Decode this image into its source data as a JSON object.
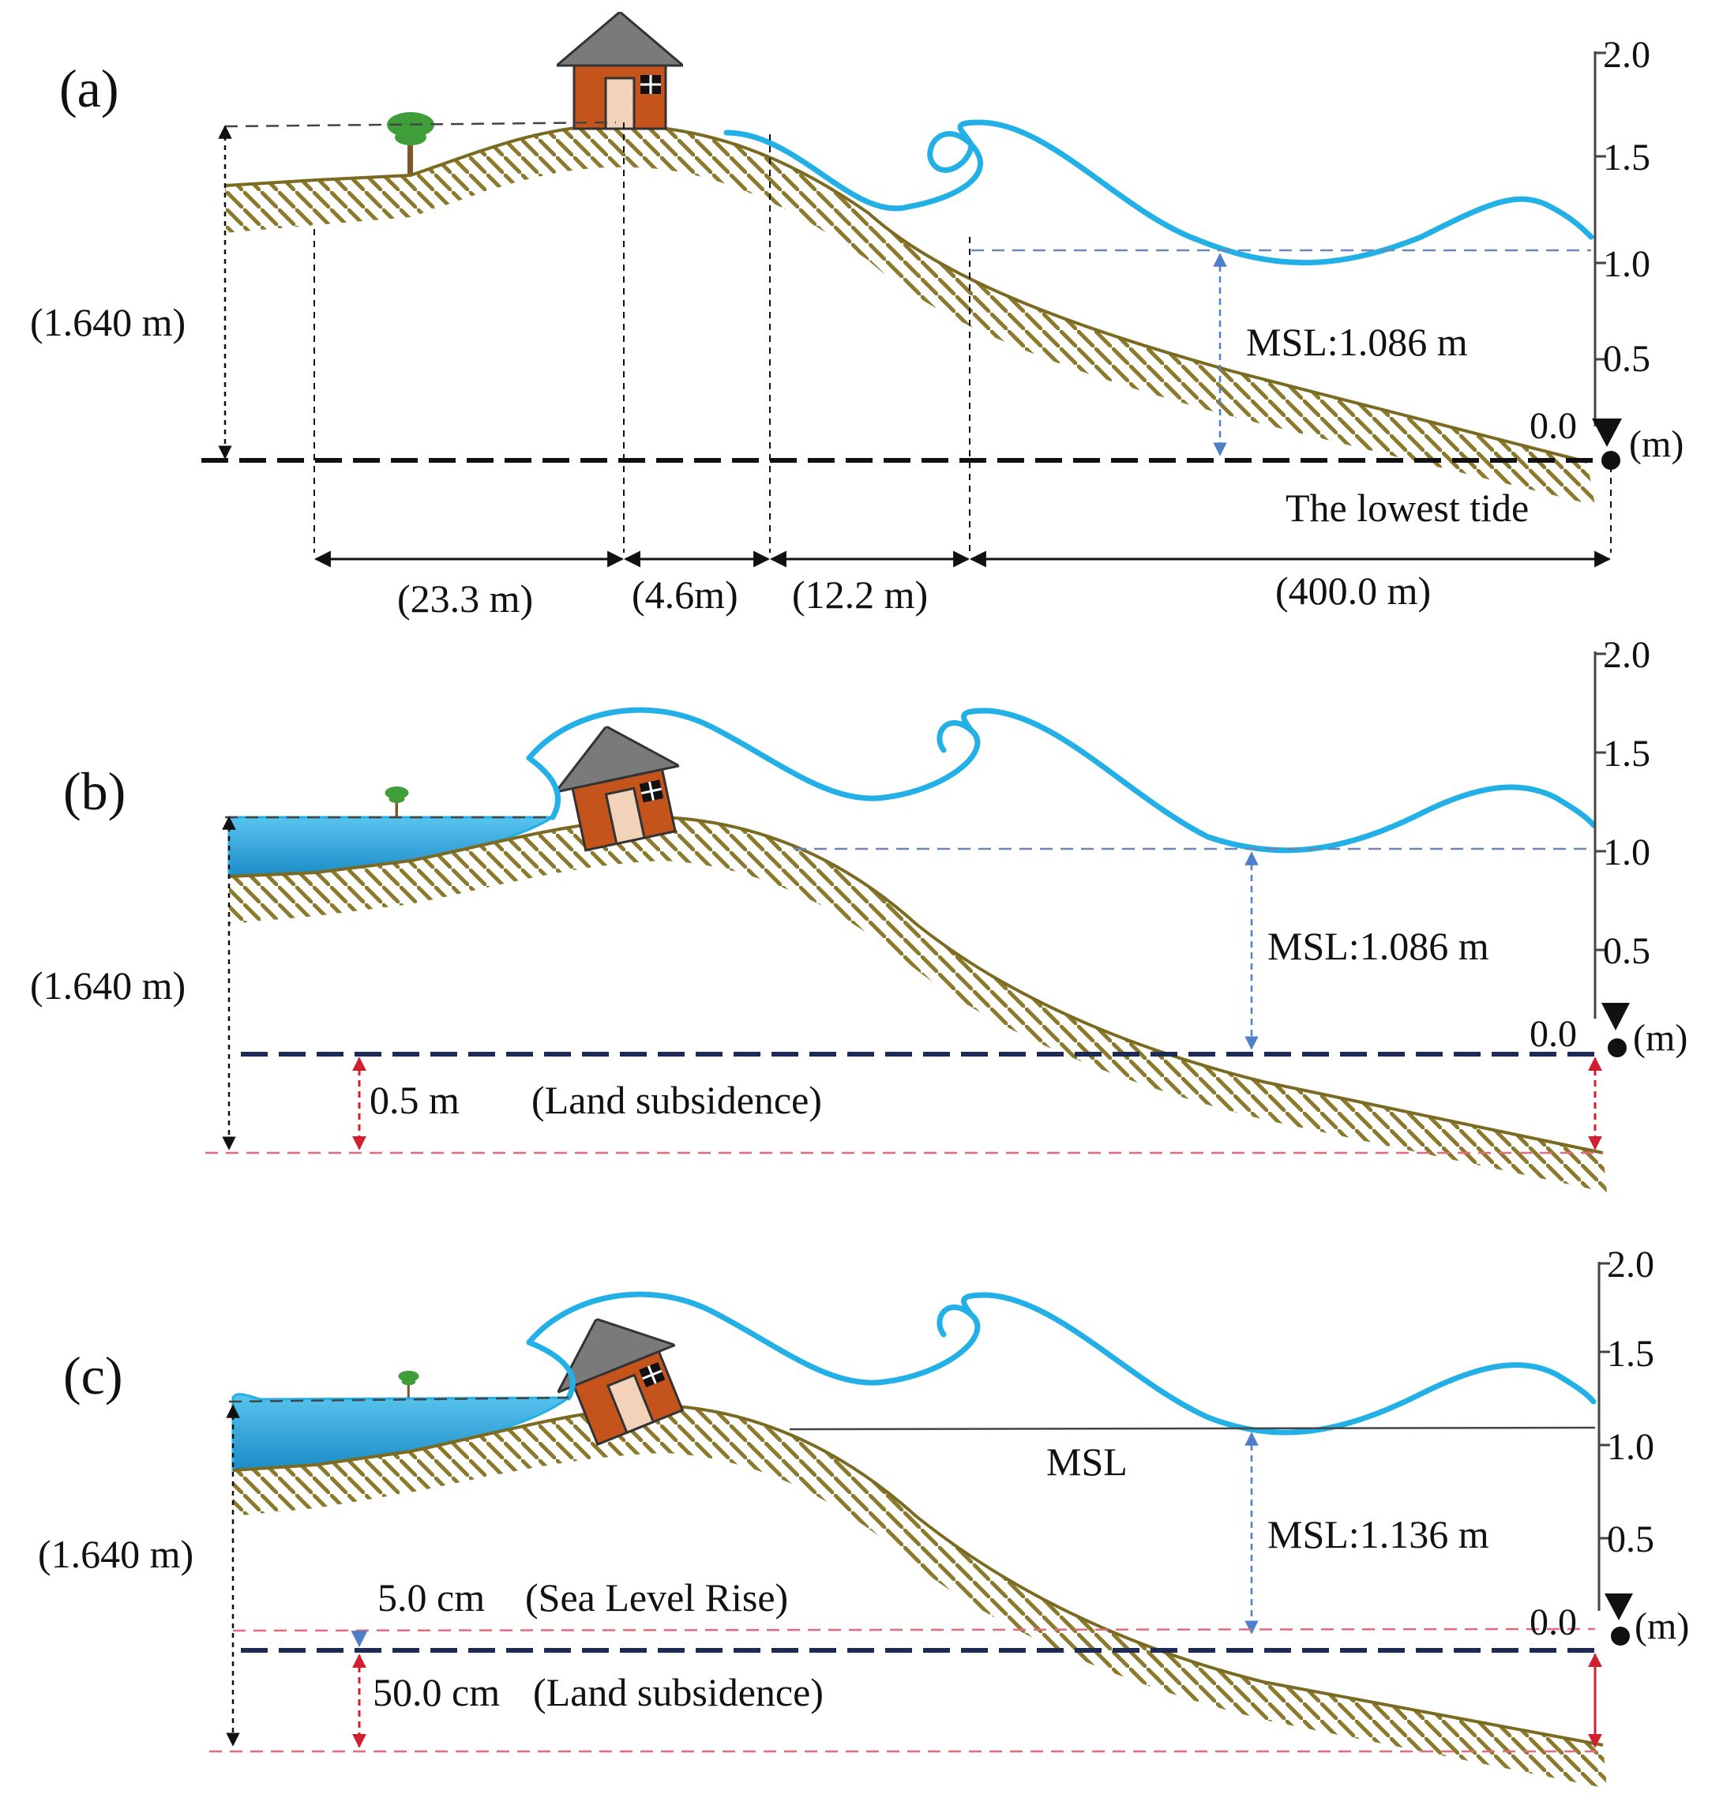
{
  "colors": {
    "ground": "#8b7a2c",
    "ground_line": "#7a6a22",
    "wave": "#22b0e6",
    "water_dark": "#1c8cc7",
    "water_light": "#58c4ef",
    "house_wall": "#c4531c",
    "house_roof": "#7a7a7a",
    "tree": "#3f9e3a",
    "msl_arrow": "#4f7fc8",
    "subsidence": "#d01f2f",
    "datum_line": "#1c2a55",
    "black": "#111111"
  },
  "icons": {
    "house": "house-icon",
    "tree": "tree-icon",
    "datum_marker": "triangle-down-icon"
  },
  "panel_a": {
    "label": "(a)",
    "height_label": "(1.640 m)",
    "msl_label": "MSL:1.086 m",
    "tide_label": "The lowest tide",
    "zero_label": "0.0",
    "unit_label": "(m)",
    "distances": [
      "(23.3 m)",
      "(4.6m)",
      "(12.2 m)",
      "(400.0 m)"
    ],
    "ticks": [
      "2.0",
      "1.5",
      "1.0",
      "0.5"
    ]
  },
  "panel_b": {
    "label": "(b)",
    "height_label": "(1.640 m)",
    "msl_label": "MSL:1.086 m",
    "subsidence_value": "0.5 m",
    "subsidence_label": "(Land subsidence)",
    "zero_label": "0.0",
    "unit_label": "(m)",
    "ticks": [
      "2.0",
      "1.5",
      "1.0",
      "0.5"
    ]
  },
  "panel_c": {
    "label": "(c)",
    "height_label": "(1.640 m)",
    "msl_short": "MSL",
    "msl_label": "MSL:1.136 m",
    "slr_value": "5.0 cm",
    "slr_label": "(Sea Level Rise)",
    "subsidence_value": "50.0 cm",
    "subsidence_label": "(Land subsidence)",
    "zero_label": "0.0",
    "unit_label": "(m)",
    "ticks": [
      "2.0",
      "1.5",
      "1.0",
      "0.5"
    ]
  }
}
